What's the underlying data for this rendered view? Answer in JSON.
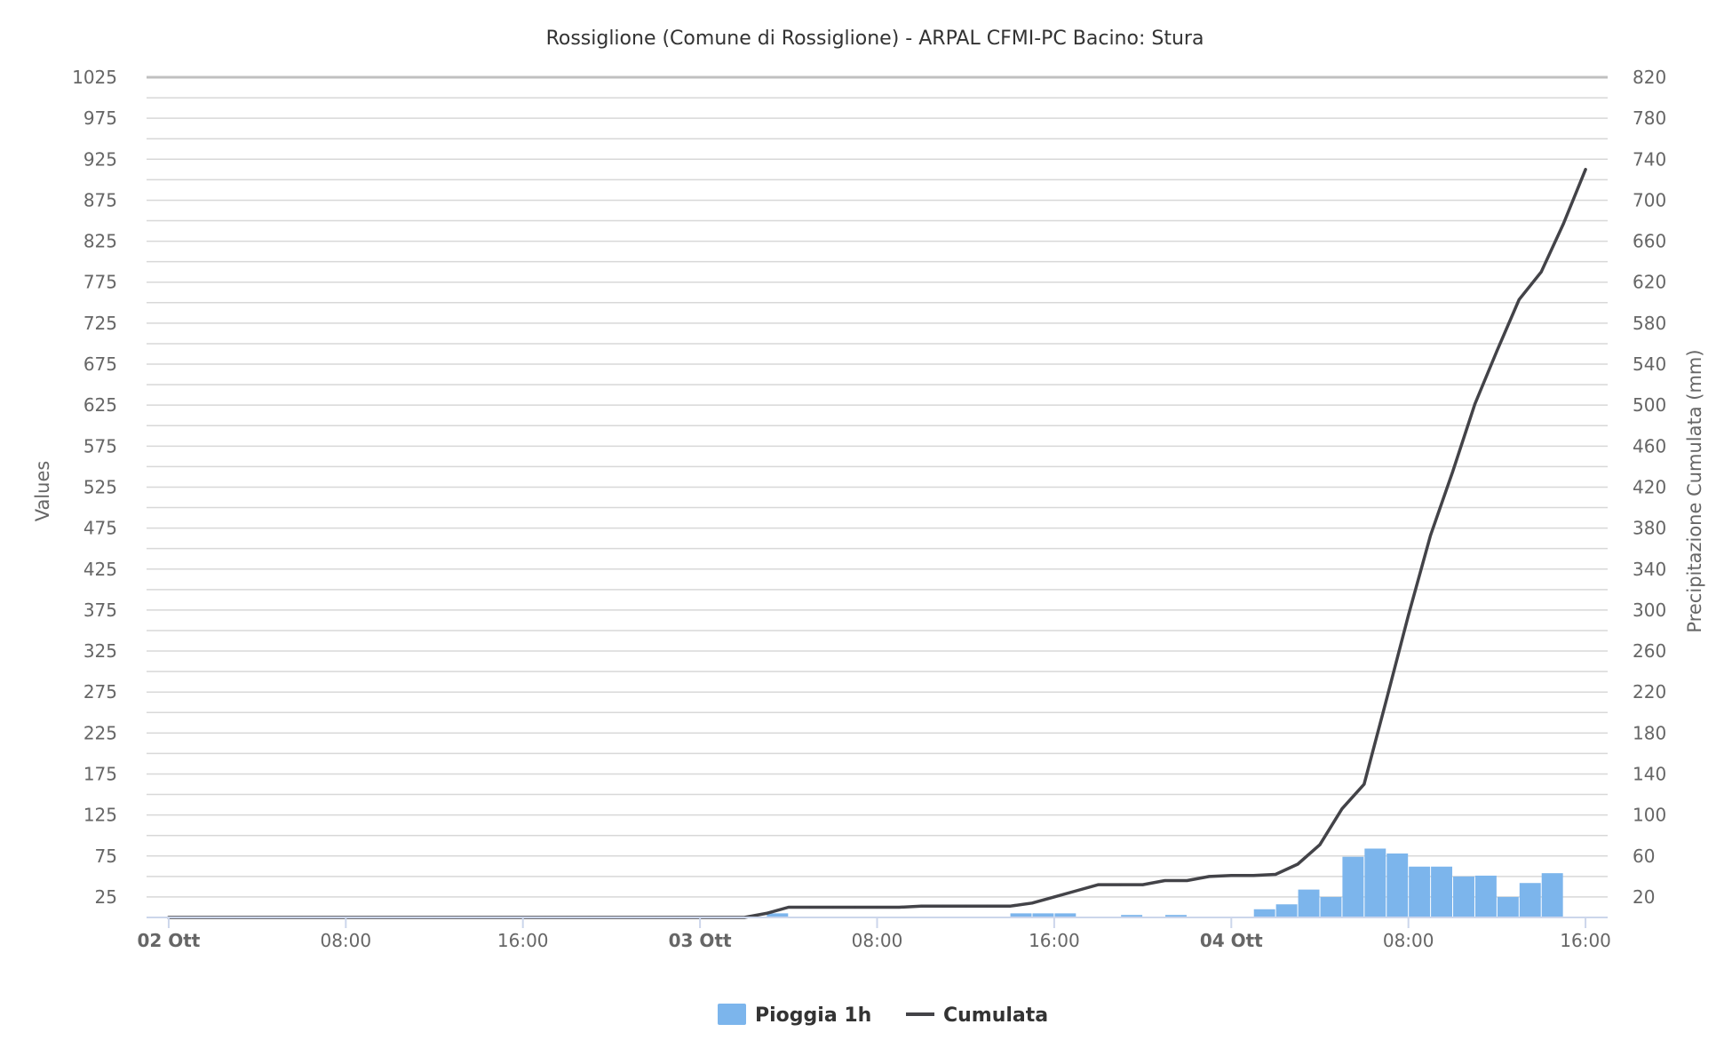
{
  "chart_data": {
    "type": "bar",
    "title": "Rossiglione (Comune di Rossiglione) - ARPAL CFMI-PC Bacino: Stura",
    "ylabel": "Values",
    "y2label": "Precipitazione Cumulata (mm)",
    "ylim": [
      0,
      1025
    ],
    "y2lim": [
      0,
      820
    ],
    "y_ticks": [
      "25",
      "75",
      "125",
      "175",
      "225",
      "275",
      "325",
      "375",
      "425",
      "475",
      "525",
      "575",
      "625",
      "675",
      "725",
      "775",
      "825",
      "875",
      "925",
      "975",
      "1025"
    ],
    "y2_ticks": [
      "20",
      "60",
      "100",
      "140",
      "180",
      "220",
      "260",
      "300",
      "340",
      "380",
      "420",
      "460",
      "500",
      "540",
      "580",
      "620",
      "660",
      "700",
      "740",
      "780",
      "820"
    ],
    "x_range_hours": [
      -1,
      65
    ],
    "x_ticks": [
      {
        "hour": 0,
        "label": "02 Ott",
        "bold": true
      },
      {
        "hour": 8,
        "label": "08:00",
        "bold": false
      },
      {
        "hour": 16,
        "label": "16:00",
        "bold": false
      },
      {
        "hour": 24,
        "label": "03 Ott",
        "bold": true
      },
      {
        "hour": 32,
        "label": "08:00",
        "bold": false
      },
      {
        "hour": 40,
        "label": "16:00",
        "bold": false
      },
      {
        "hour": 48,
        "label": "04 Ott",
        "bold": true
      },
      {
        "hour": 56,
        "label": "08:00",
        "bold": false
      },
      {
        "hour": 64,
        "label": "16:00",
        "bold": false
      }
    ],
    "grid": true,
    "legend_position": "bottom-center",
    "series": [
      {
        "name": "Pioggia 1h",
        "type": "column",
        "axis": "left",
        "color": "#7cb5ec",
        "points": [
          {
            "hour": 28,
            "value": 5
          },
          {
            "hour": 39,
            "value": 5
          },
          {
            "hour": 40,
            "value": 5
          },
          {
            "hour": 41,
            "value": 5
          },
          {
            "hour": 44,
            "value": 3
          },
          {
            "hour": 46,
            "value": 3
          },
          {
            "hour": 50,
            "value": 10
          },
          {
            "hour": 51,
            "value": 16
          },
          {
            "hour": 52,
            "value": 34
          },
          {
            "hour": 53,
            "value": 25
          },
          {
            "hour": 54,
            "value": 74
          },
          {
            "hour": 55,
            "value": 84
          },
          {
            "hour": 56,
            "value": 78
          },
          {
            "hour": 57,
            "value": 62
          },
          {
            "hour": 58,
            "value": 62
          },
          {
            "hour": 59,
            "value": 50
          },
          {
            "hour": 60,
            "value": 51
          },
          {
            "hour": 61,
            "value": 25
          },
          {
            "hour": 62,
            "value": 42
          },
          {
            "hour": 63,
            "value": 54
          }
        ]
      },
      {
        "name": "Cumulata",
        "type": "line",
        "axis": "right",
        "color": "#434348",
        "points": [
          {
            "hour": 0,
            "value": 0
          },
          {
            "hour": 1,
            "value": 0
          },
          {
            "hour": 2,
            "value": 0
          },
          {
            "hour": 3,
            "value": 0
          },
          {
            "hour": 4,
            "value": 0
          },
          {
            "hour": 5,
            "value": 0
          },
          {
            "hour": 6,
            "value": 0
          },
          {
            "hour": 7,
            "value": 0
          },
          {
            "hour": 8,
            "value": 0
          },
          {
            "hour": 9,
            "value": 0
          },
          {
            "hour": 10,
            "value": 0
          },
          {
            "hour": 11,
            "value": 0
          },
          {
            "hour": 12,
            "value": 0
          },
          {
            "hour": 13,
            "value": 0
          },
          {
            "hour": 14,
            "value": 0
          },
          {
            "hour": 15,
            "value": 0
          },
          {
            "hour": 16,
            "value": 0
          },
          {
            "hour": 17,
            "value": 0
          },
          {
            "hour": 18,
            "value": 0
          },
          {
            "hour": 19,
            "value": 0
          },
          {
            "hour": 20,
            "value": 0
          },
          {
            "hour": 21,
            "value": 0
          },
          {
            "hour": 22,
            "value": 0
          },
          {
            "hour": 23,
            "value": 0
          },
          {
            "hour": 24,
            "value": 0
          },
          {
            "hour": 25,
            "value": 0
          },
          {
            "hour": 26,
            "value": 0
          },
          {
            "hour": 27,
            "value": 4
          },
          {
            "hour": 28,
            "value": 10
          },
          {
            "hour": 29,
            "value": 10
          },
          {
            "hour": 30,
            "value": 10
          },
          {
            "hour": 31,
            "value": 10
          },
          {
            "hour": 32,
            "value": 10
          },
          {
            "hour": 33,
            "value": 10
          },
          {
            "hour": 34,
            "value": 11
          },
          {
            "hour": 35,
            "value": 11
          },
          {
            "hour": 36,
            "value": 11
          },
          {
            "hour": 37,
            "value": 11
          },
          {
            "hour": 38,
            "value": 11
          },
          {
            "hour": 39,
            "value": 14
          },
          {
            "hour": 40,
            "value": 20
          },
          {
            "hour": 41,
            "value": 26
          },
          {
            "hour": 42,
            "value": 32
          },
          {
            "hour": 43,
            "value": 32
          },
          {
            "hour": 44,
            "value": 32
          },
          {
            "hour": 45,
            "value": 36
          },
          {
            "hour": 46,
            "value": 36
          },
          {
            "hour": 47,
            "value": 40
          },
          {
            "hour": 48,
            "value": 41
          },
          {
            "hour": 49,
            "value": 41
          },
          {
            "hour": 50,
            "value": 42
          },
          {
            "hour": 51,
            "value": 52
          },
          {
            "hour": 52,
            "value": 71
          },
          {
            "hour": 53,
            "value": 106
          },
          {
            "hour": 54,
            "value": 130
          },
          {
            "hour": 55,
            "value": 212
          },
          {
            "hour": 56,
            "value": 295
          },
          {
            "hour": 57,
            "value": 373
          },
          {
            "hour": 58,
            "value": 435
          },
          {
            "hour": 59,
            "value": 501
          },
          {
            "hour": 60,
            "value": 553
          },
          {
            "hour": 61,
            "value": 603
          },
          {
            "hour": 62,
            "value": 630
          },
          {
            "hour": 63,
            "value": 677
          },
          {
            "hour": 64,
            "value": 730
          }
        ]
      }
    ]
  }
}
